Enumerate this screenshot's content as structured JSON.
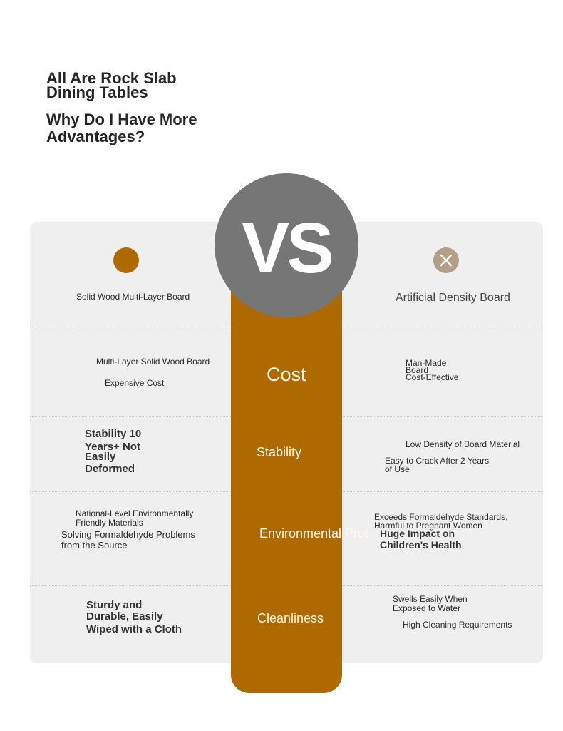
{
  "header": {
    "line1": "All Are Rock Slab",
    "line2": "Dining Tables",
    "line3": "Why Do I Have More",
    "line4": "Advantages?"
  },
  "vs": {
    "label": "VS"
  },
  "left": {
    "title": "Solid Wood Multi-Layer Board",
    "icon": "circle-dot-icon",
    "color": "#ae6a00"
  },
  "right": {
    "title": "Artificial Density Board",
    "icon": "close-icon",
    "color": "#b29f86"
  },
  "rows": {
    "cost": {
      "label": "Cost",
      "left_a": "Multi-Layer Solid Wood Board",
      "left_b": "Expensive Cost",
      "right_a": "Man-Made",
      "right_b": "Board",
      "right_c": "Cost-Effective"
    },
    "stability": {
      "label": "Stability",
      "left_a": "Stability 10",
      "left_b": "Years+ Not",
      "left_c": "Easily",
      "left_d": "Deformed",
      "right_a": "Low Density of Board Material",
      "right_b": "Easy to Crack After 2 Years",
      "right_c": "of Use"
    },
    "environmental": {
      "label": "Environmental Prot",
      "left_a": "National-Level Environmentally",
      "left_b": "Friendly Materials",
      "left_c": "Solving Formaldehyde Problems",
      "left_d": "from the Source",
      "right_a": "Exceeds Formaldehyde Standards,",
      "right_b": "Harmful to Pregnant Women",
      "right_c": "Huge Impact on",
      "right_d": "Children's Health"
    },
    "cleanliness": {
      "label": "Cleanliness",
      "left_a": "Sturdy and",
      "left_b": "Durable, Easily",
      "left_c": "Wiped with a Cloth",
      "right_a": "Swells Easily When",
      "right_b": "Exposed to Water",
      "right_c": "High Cleaning Requirements"
    }
  },
  "colors": {
    "accent": "#ae6a00",
    "panel": "#efefef",
    "vs_circle": "#767676",
    "category_text": "#fff8ec"
  }
}
